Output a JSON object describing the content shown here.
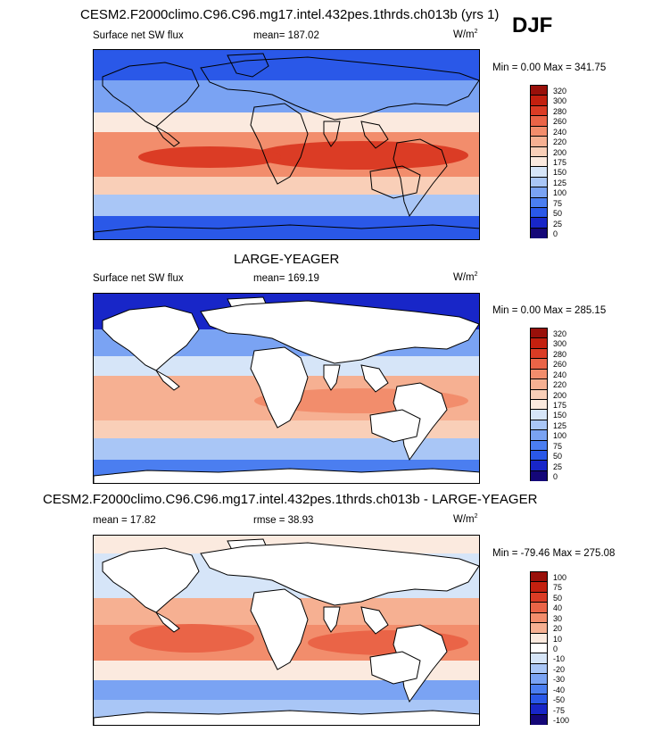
{
  "season": "DJF",
  "colors": {
    "abs": [
      "#140778",
      "#1826c8",
      "#2a58e8",
      "#4b7ef0",
      "#7aa3f3",
      "#a9c6f6",
      "#d6e5f8",
      "#fbeadf",
      "#f9cfb8",
      "#f6b092",
      "#f28d6c",
      "#ea6447",
      "#db3c25",
      "#c3200f",
      "#99100a"
    ],
    "diff": [
      "#140778",
      "#1826c8",
      "#2a58e8",
      "#4b7ef0",
      "#7aa3f3",
      "#a9c6f6",
      "#d6e5f8",
      "#ffffff",
      "#fbeadf",
      "#f6b092",
      "#f28d6c",
      "#ea6447",
      "#db3c25",
      "#c3200f",
      "#99100a"
    ],
    "land": "#ffffff"
  },
  "panels": [
    {
      "title": "CESM2.F2000climo.C96.C96.mg17.intel.432pes.1thrds.ch013b (yrs 1)",
      "left_label": "Surface net SW flux",
      "mid_label": "mean= 187.02",
      "units": "W/m",
      "units_sup": "2",
      "minmax": "Min =  0.00 Max = 341.75",
      "levels": [
        "320",
        "300",
        "280",
        "260",
        "240",
        "220",
        "200",
        "175",
        "150",
        "125",
        "100",
        "75",
        "50",
        "25",
        "0"
      ]
    },
    {
      "title": "LARGE-YEAGER",
      "left_label": "Surface net SW flux",
      "mid_label": "mean= 169.19",
      "units": "W/m",
      "units_sup": "2",
      "minmax": "Min =  0.00 Max = 285.15",
      "levels": [
        "320",
        "300",
        "280",
        "260",
        "240",
        "220",
        "200",
        "175",
        "150",
        "125",
        "100",
        "75",
        "50",
        "25",
        "0"
      ]
    },
    {
      "title": "CESM2.F2000climo.C96.C96.mg17.intel.432pes.1thrds.ch013b - LARGE-YEAGER",
      "left_label": "mean =  17.82",
      "mid_label": "rmse =  38.93",
      "units": "W/m",
      "units_sup": "2",
      "minmax": "Min = -79.46 Max = 275.08",
      "levels": [
        "100",
        "75",
        "50",
        "40",
        "30",
        "20",
        "10",
        "0",
        "-10",
        "-20",
        "-30",
        "-40",
        "-50",
        "-75",
        "-100"
      ]
    }
  ],
  "chart_data": [
    {
      "type": "heatmap",
      "title": "CESM2.F2000climo.C96.C96.mg17.intel.432pes.1thrds.ch013b (yrs 1)",
      "variable": "Surface net SW flux",
      "units": "W/m2",
      "mean": 187.02,
      "min": 0.0,
      "max": 341.75,
      "levels": [
        0,
        25,
        50,
        75,
        100,
        125,
        150,
        175,
        200,
        220,
        240,
        260,
        280,
        300,
        320
      ]
    },
    {
      "type": "heatmap",
      "title": "LARGE-YEAGER",
      "variable": "Surface net SW flux",
      "units": "W/m2",
      "mean": 169.19,
      "min": 0.0,
      "max": 285.15,
      "levels": [
        0,
        25,
        50,
        75,
        100,
        125,
        150,
        175,
        200,
        220,
        240,
        260,
        280,
        300,
        320
      ]
    },
    {
      "type": "heatmap",
      "title": "CESM2.F2000climo.C96.C96.mg17.intel.432pes.1thrds.ch013b - LARGE-YEAGER",
      "mean": 17.82,
      "rmse": 38.93,
      "units": "W/m2",
      "min": -79.46,
      "max": 275.08,
      "levels": [
        -100,
        -75,
        -50,
        -40,
        -30,
        -20,
        -10,
        0,
        10,
        20,
        30,
        40,
        50,
        75,
        100
      ]
    }
  ]
}
